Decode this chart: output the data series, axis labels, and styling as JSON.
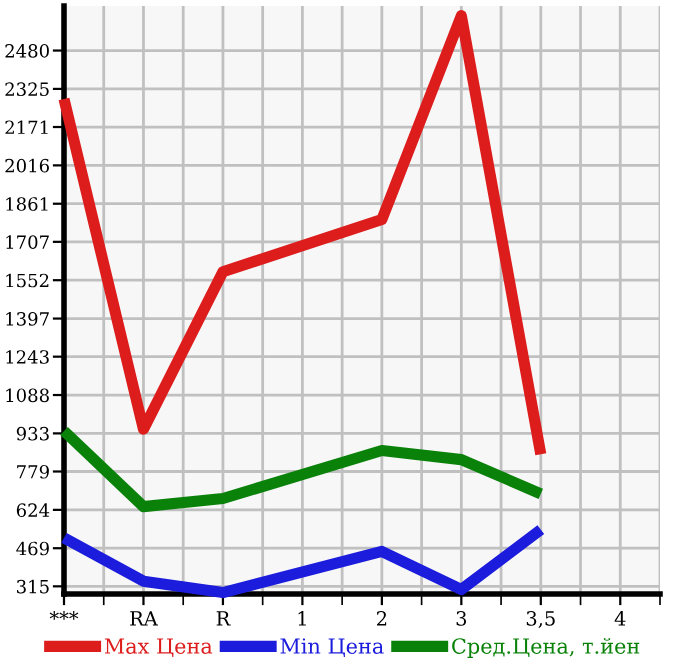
{
  "chart_data": {
    "type": "line",
    "categories": [
      "***",
      "RA",
      "R",
      "1",
      "2",
      "3",
      "3,5",
      "4"
    ],
    "series": [
      {
        "name": "Max Цена",
        "color": "#dd1c1c",
        "values": [
          2284,
          950,
          1586,
          null,
          1797,
          2621,
          849,
          null
        ]
      },
      {
        "name": "Min Цена",
        "color": "#1c1cdd",
        "values": [
          511,
          336,
          290,
          null,
          456,
          302,
          544,
          null
        ]
      },
      {
        "name": "Сред.Цена, т.йен",
        "color": "#0a820a",
        "values": [
          943,
          637,
          670,
          null,
          864,
          827,
          689,
          null
        ]
      }
    ],
    "ylim": [
      284,
      2660
    ],
    "yticks": [
      315,
      469,
      624,
      779,
      933,
      1088,
      1243,
      1397,
      1552,
      1707,
      1861,
      2016,
      2171,
      2325,
      2480
    ],
    "grid": true,
    "legend": "bottom",
    "marker": "none",
    "line_style": "solid"
  }
}
